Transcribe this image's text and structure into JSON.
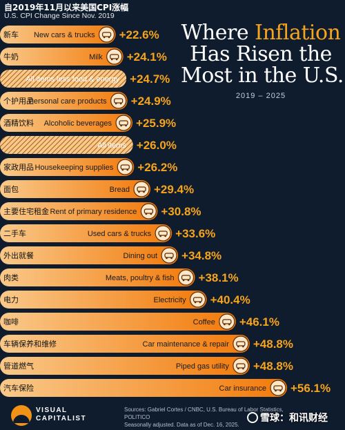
{
  "header": {
    "cn_title": "自2019年11月以来美国CPI涨幅",
    "subtitle": "U.S. CPI Change Since Nov. 2019"
  },
  "title": {
    "line1_a": "Where ",
    "line1_b": "Inflation",
    "line2": "Has Risen the",
    "line3": "Most in the U.S.",
    "years": "2019 – 2025"
  },
  "colors": {
    "background": "#0f1c2e",
    "bar_light": "#f9c98a",
    "bar_dark": "#f27a0a",
    "value_text": "#f7a41d",
    "hatch": "#a65b1a"
  },
  "chart_data": {
    "type": "bar",
    "orientation": "horizontal",
    "unit": "%",
    "categories": [
      "New cars & trucks",
      "Milk",
      "All items less food & energy",
      "Personal care products",
      "Alcoholic beverages",
      "All items",
      "Housekeeping supplies",
      "Bread",
      "Rent of primary residence",
      "Used cars & trucks",
      "Dining out",
      "Meats, poultry & fish",
      "Electricity",
      "Coffee",
      "Car maintenance & repair",
      "Piped gas utility",
      "Car insurance"
    ],
    "categories_cn": [
      "新车",
      "牛奶",
      "",
      "个护用品",
      "酒精饮料",
      "",
      "家政用品",
      "面包",
      "主要住宅租金",
      "二手车",
      "外出就餐",
      "肉类",
      "电力",
      "咖啡",
      "车辆保养和维修",
      "管道燃气",
      "汽车保险"
    ],
    "value_labels": [
      "+22.6%",
      "+24.1%",
      "+24.7%",
      "+24.9%",
      "+25.9%",
      "+26.0%",
      "+26.2%",
      "+29.4%",
      "+30.8%",
      "+33.6%",
      "+34.8%",
      "+38.1%",
      "+40.4%",
      "+46.1%",
      "+48.8%",
      "+48.8%",
      "+56.1%"
    ],
    "values": [
      22.6,
      24.1,
      24.7,
      24.9,
      25.9,
      26.0,
      26.2,
      29.4,
      30.8,
      33.6,
      34.8,
      38.1,
      40.4,
      46.1,
      48.8,
      48.8,
      56.1
    ],
    "hatched": [
      false,
      false,
      true,
      false,
      false,
      true,
      false,
      false,
      false,
      false,
      false,
      false,
      false,
      false,
      false,
      false,
      false
    ],
    "icons": [
      "car-icon",
      "milk-carton-icon",
      "",
      "lotion-icon",
      "beer-mug-icon",
      "",
      "spray-bottle-icon",
      "bread-icon",
      "house-icon",
      "car-icon",
      "takeout-box-icon",
      "steak-icon",
      "lightning-icon",
      "coffee-cup-icon",
      "wrench-icon",
      "gas-meter-icon",
      "car-crash-icon"
    ]
  },
  "footer": {
    "logo_line1": "VISUAL",
    "logo_line2": "CAPITALIST",
    "sources_line1": "Sources: Gabriel Cortes / CNBC, U.S. Bureau of Labor Statistics, POLITICO",
    "sources_line2": "Seasonally adjusted. Data as of Dec. 16, 2025."
  },
  "watermark": {
    "text": "雪球：和讯财经"
  }
}
